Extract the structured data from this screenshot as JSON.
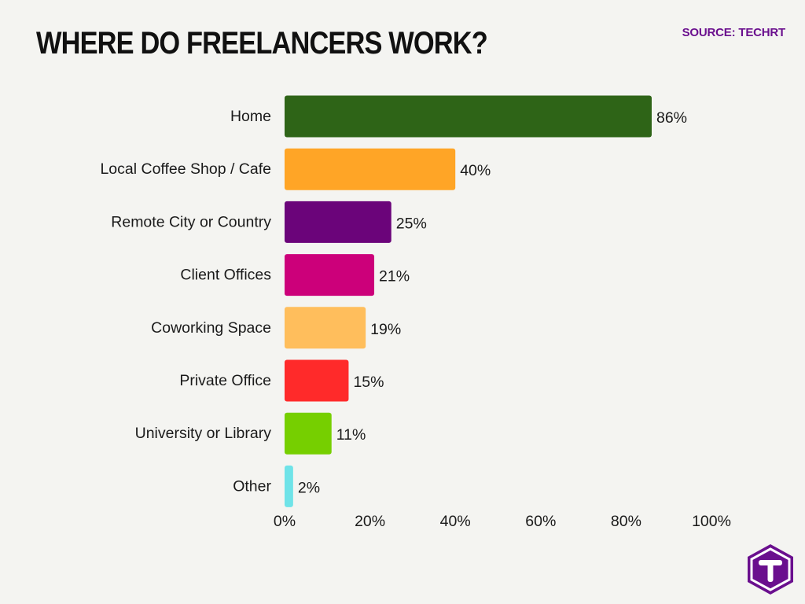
{
  "header": {
    "title": "WHERE DO FREELANCERS WORK?",
    "source": "SOURCE: TECHRT"
  },
  "logo": {
    "icon": "techrt-logo-icon",
    "color": "#6a0f8e"
  },
  "chart_data": {
    "type": "bar",
    "orientation": "horizontal",
    "categories": [
      "Home",
      "Local Coffee Shop / Cafe",
      "Remote City or Country",
      "Client Offices",
      "Coworking Space",
      "Private Office",
      "University or Library",
      "Other"
    ],
    "values": [
      86,
      40,
      25,
      21,
      19,
      15,
      11,
      2
    ],
    "data_labels": [
      "86%",
      "40%",
      "25%",
      "21%",
      "19%",
      "15%",
      "11%",
      "2%"
    ],
    "colors": [
      "#2e6417",
      "#ffa526",
      "#6b047a",
      "#cc007a",
      "#ffbe5c",
      "#ff2a2a",
      "#76cf00",
      "#6fe3e8"
    ],
    "xlim": [
      0,
      100
    ],
    "xticks": [
      0,
      20,
      40,
      60,
      80,
      100
    ],
    "xtick_labels": [
      "0%",
      "20%",
      "40%",
      "60%",
      "80%",
      "100%"
    ],
    "grid": false
  }
}
